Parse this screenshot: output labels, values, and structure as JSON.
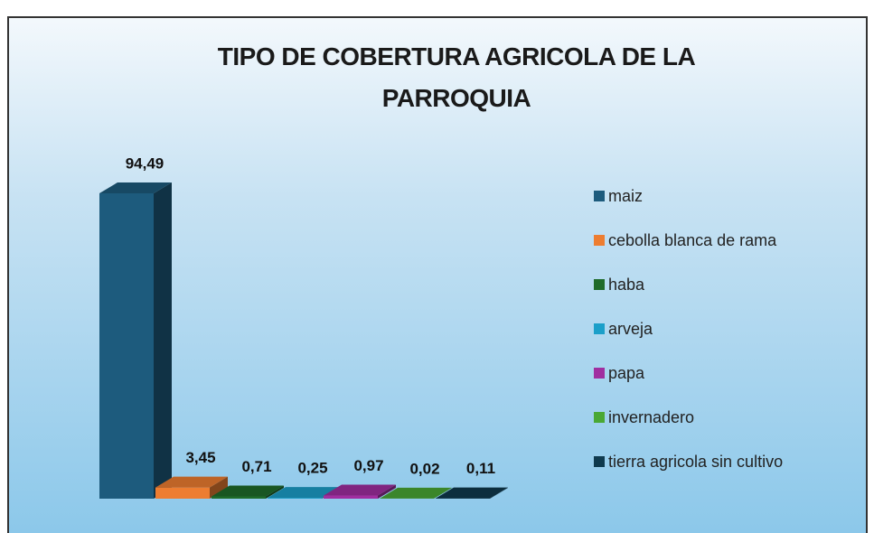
{
  "chart_data": {
    "type": "bar3d",
    "title": "TIPO DE COBERTURA AGRICOLA DE LA PARROQUIA",
    "categories": [
      "maiz",
      "cebolla blanca de rama",
      "haba",
      "arveja",
      "papa",
      "invernadero",
      "tierra agricola sin cultivo"
    ],
    "values": [
      94.49,
      3.45,
      0.71,
      0.25,
      0.97,
      0.02,
      0.11
    ],
    "value_labels": [
      "94,49",
      "3,45",
      "0,71",
      "0,25",
      "0,97",
      "0,02",
      "0,11"
    ],
    "colors": [
      "#1d5b7d",
      "#ed7d31",
      "#1f6b2a",
      "#1b9fc9",
      "#a02ea0",
      "#4aa834",
      "#0f3a4e"
    ],
    "legend": "right"
  }
}
